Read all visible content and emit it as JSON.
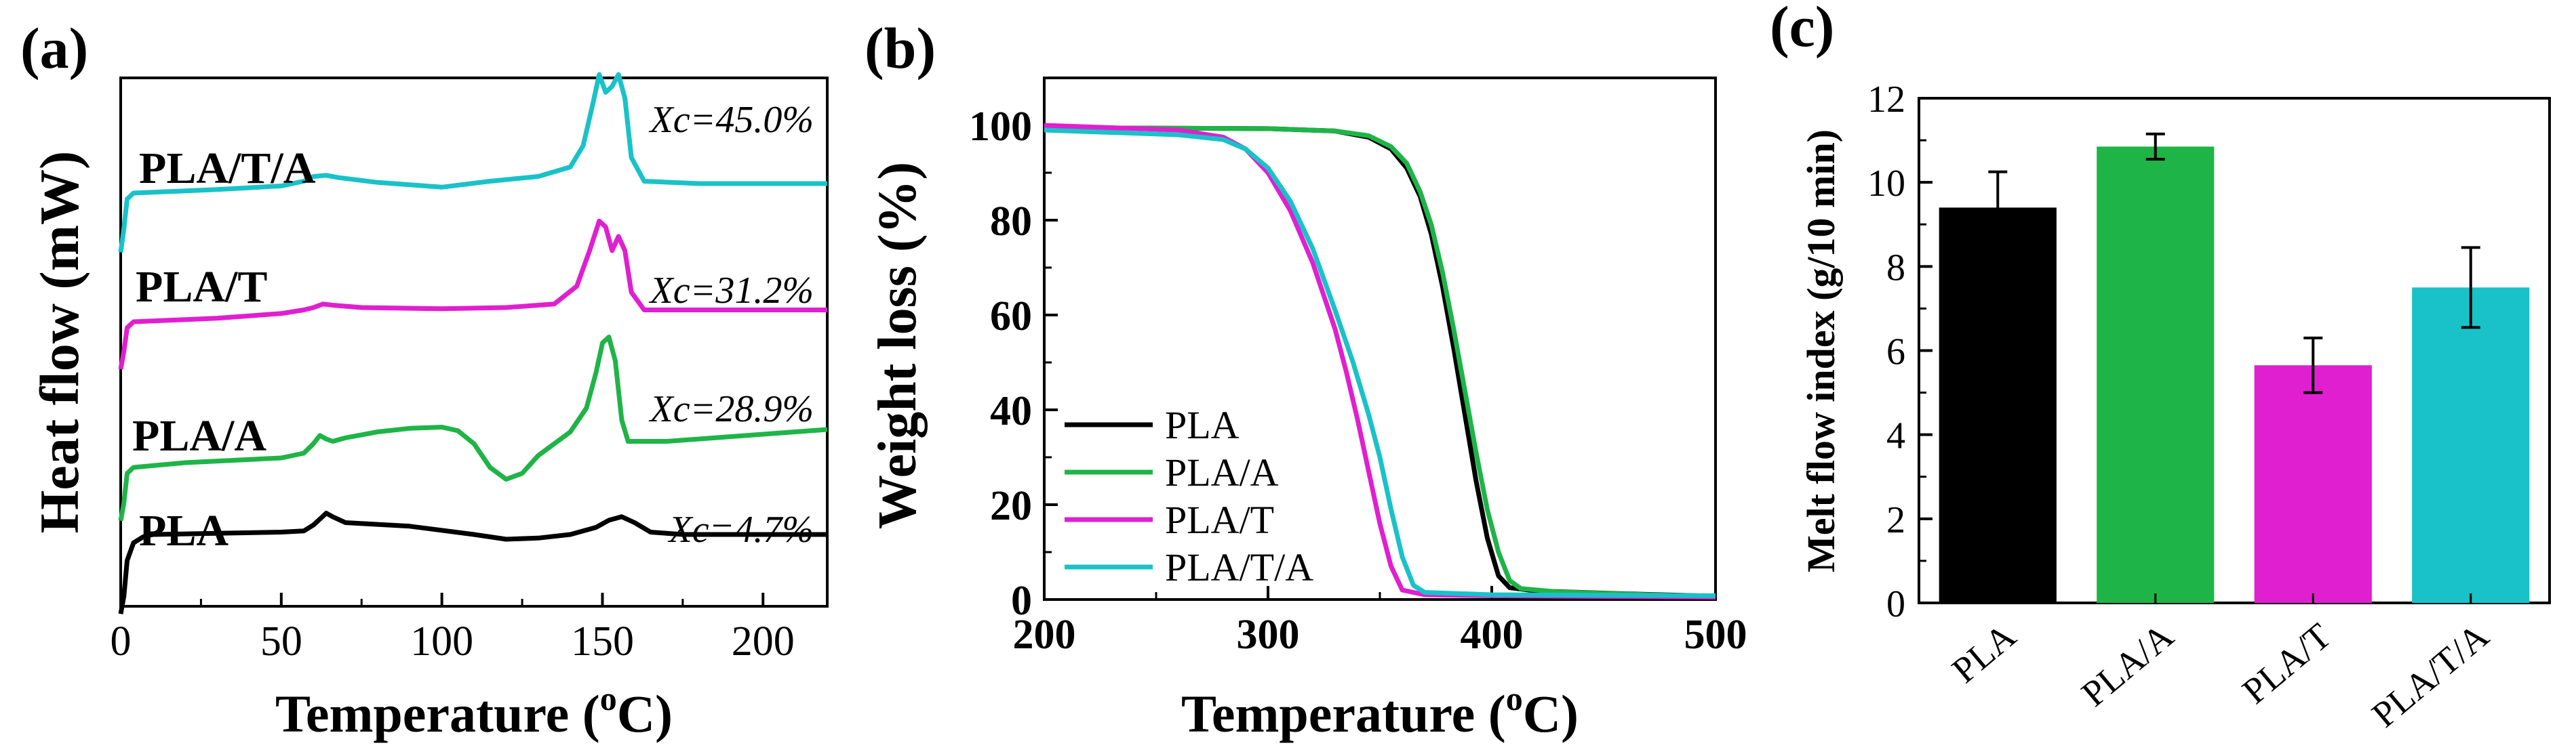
{
  "colors": {
    "black": "#000000",
    "green": "#1fb447",
    "magenta": "#e01fd0",
    "cyan": "#19c2c8"
  },
  "chart_data": [
    {
      "panel": "(a)",
      "type": "line",
      "title": "",
      "xlabel": "Temperature (oC)",
      "xlabel_main": "Temperature (",
      "xlabel_sup": "o",
      "xlabel_end": "C)",
      "ylabel": "Heat flow (mW)",
      "xlim": [
        0,
        220
      ],
      "xticks": [
        "0",
        "50",
        "100",
        "150",
        "200"
      ],
      "y_units": "arbitrary (offset curves, no ticks)",
      "series": [
        {
          "name": "PLA",
          "color": "#000000",
          "annotation": "Xc=4.7%",
          "offset": 0,
          "points": [
            [
              0,
              -55
            ],
            [
              1,
              -40
            ],
            [
              2,
              -10
            ],
            [
              4,
              5
            ],
            [
              7,
              10
            ],
            [
              10,
              12
            ],
            [
              30,
              13
            ],
            [
              50,
              14
            ],
            [
              57,
              15
            ],
            [
              60,
              20
            ],
            [
              62,
              25
            ],
            [
              64,
              30
            ],
            [
              66,
              27
            ],
            [
              70,
              22
            ],
            [
              90,
              19
            ],
            [
              110,
              12
            ],
            [
              120,
              8
            ],
            [
              130,
              9
            ],
            [
              140,
              12
            ],
            [
              148,
              18
            ],
            [
              152,
              24
            ],
            [
              156,
              27
            ],
            [
              160,
              22
            ],
            [
              165,
              14
            ],
            [
              175,
              12
            ],
            [
              200,
              12
            ],
            [
              220,
              12
            ]
          ]
        },
        {
          "name": "PLA/A",
          "color": "#1fb447",
          "annotation": "Xc=28.9%",
          "offset": 100,
          "points": [
            [
              0,
              -45
            ],
            [
              1,
              -30
            ],
            [
              2,
              -5
            ],
            [
              4,
              0
            ],
            [
              20,
              4
            ],
            [
              50,
              8
            ],
            [
              57,
              12
            ],
            [
              60,
              20
            ],
            [
              62,
              27
            ],
            [
              64,
              24
            ],
            [
              66,
              22
            ],
            [
              70,
              25
            ],
            [
              80,
              30
            ],
            [
              90,
              33
            ],
            [
              100,
              34
            ],
            [
              105,
              31
            ],
            [
              110,
              20
            ],
            [
              115,
              0
            ],
            [
              120,
              -10
            ],
            [
              125,
              -5
            ],
            [
              130,
              10
            ],
            [
              140,
              30
            ],
            [
              145,
              50
            ],
            [
              148,
              80
            ],
            [
              150,
              105
            ],
            [
              152,
              110
            ],
            [
              154,
              90
            ],
            [
              156,
              40
            ],
            [
              158,
              22
            ],
            [
              170,
              22
            ],
            [
              200,
              28
            ],
            [
              220,
              32
            ]
          ]
        },
        {
          "name": "PLA/T",
          "color": "#e01fd0",
          "annotation": "Xc=31.2%",
          "offset": 180,
          "points": [
            [
              0,
              -40
            ],
            [
              1,
              -25
            ],
            [
              2,
              -5
            ],
            [
              4,
              0
            ],
            [
              30,
              3
            ],
            [
              50,
              7
            ],
            [
              57,
              10
            ],
            [
              60,
              12
            ],
            [
              63,
              15
            ],
            [
              66,
              14
            ],
            [
              75,
              12
            ],
            [
              100,
              11
            ],
            [
              120,
              12
            ],
            [
              135,
              15
            ],
            [
              142,
              30
            ],
            [
              146,
              60
            ],
            [
              149,
              85
            ],
            [
              151,
              80
            ],
            [
              153,
              60
            ],
            [
              155,
              72
            ],
            [
              157,
              60
            ],
            [
              159,
              25
            ],
            [
              163,
              10
            ],
            [
              180,
              10
            ],
            [
              220,
              10
            ]
          ]
        },
        {
          "name": "PLA/T/A",
          "color": "#19c2c8",
          "annotation": "Xc=45.0%",
          "offset": 275,
          "points": [
            [
              0,
              -50
            ],
            [
              1,
              -30
            ],
            [
              2,
              -5
            ],
            [
              4,
              0
            ],
            [
              30,
              3
            ],
            [
              50,
              6
            ],
            [
              57,
              10
            ],
            [
              60,
              14
            ],
            [
              64,
              15
            ],
            [
              68,
              13
            ],
            [
              80,
              9
            ],
            [
              95,
              6
            ],
            [
              100,
              5
            ],
            [
              115,
              10
            ],
            [
              130,
              14
            ],
            [
              140,
              22
            ],
            [
              144,
              40
            ],
            [
              147,
              75
            ],
            [
              149,
              100
            ],
            [
              151,
              85
            ],
            [
              153,
              90
            ],
            [
              155,
              100
            ],
            [
              157,
              80
            ],
            [
              159,
              30
            ],
            [
              163,
              10
            ],
            [
              180,
              8
            ],
            [
              220,
              8
            ]
          ]
        }
      ]
    },
    {
      "panel": "(b)",
      "type": "line",
      "title": "",
      "xlabel": "Temperature (oC)",
      "xlabel_main": "Temperature (",
      "xlabel_sup": "o",
      "xlabel_end": "C)",
      "ylabel": "Weight loss (%)",
      "xlim": [
        200,
        500
      ],
      "ylim": [
        0,
        110
      ],
      "xticks": [
        "200",
        "300",
        "400",
        "500"
      ],
      "yticks": [
        "0",
        "20",
        "40",
        "60",
        "80",
        "100"
      ],
      "legend": "lower-left",
      "series": [
        {
          "name": "PLA",
          "color": "#000000",
          "points": [
            [
              200,
              99.5
            ],
            [
              300,
              99.3
            ],
            [
              330,
              98.8
            ],
            [
              345,
              97.5
            ],
            [
              355,
              95
            ],
            [
              362,
              91
            ],
            [
              368,
              85
            ],
            [
              373,
              77
            ],
            [
              378,
              66
            ],
            [
              383,
              53
            ],
            [
              388,
              39
            ],
            [
              393,
              25
            ],
            [
              398,
              13
            ],
            [
              403,
              5
            ],
            [
              408,
              2.5
            ],
            [
              420,
              1.8
            ],
            [
              460,
              1.2
            ],
            [
              500,
              0.7
            ]
          ]
        },
        {
          "name": "PLA/A",
          "color": "#1fb447",
          "points": [
            [
              200,
              99.5
            ],
            [
              300,
              99.3
            ],
            [
              330,
              98.8
            ],
            [
              345,
              97.8
            ],
            [
              355,
              95.5
            ],
            [
              362,
              92
            ],
            [
              368,
              86
            ],
            [
              373,
              79
            ],
            [
              378,
              69
            ],
            [
              383,
              57
            ],
            [
              388,
              44
            ],
            [
              393,
              31
            ],
            [
              398,
              19
            ],
            [
              403,
              10
            ],
            [
              408,
              4
            ],
            [
              413,
              2.3
            ],
            [
              430,
              1.6
            ],
            [
              470,
              1
            ],
            [
              500,
              0.6
            ]
          ]
        },
        {
          "name": "PLA/T",
          "color": "#e01fd0",
          "points": [
            [
              200,
              100
            ],
            [
              260,
              99
            ],
            [
              280,
              97.5
            ],
            [
              290,
              95
            ],
            [
              300,
              90
            ],
            [
              310,
              82
            ],
            [
              320,
              71
            ],
            [
              330,
              57
            ],
            [
              335,
              48
            ],
            [
              340,
              38
            ],
            [
              345,
              27
            ],
            [
              350,
              16
            ],
            [
              355,
              7
            ],
            [
              360,
              2
            ],
            [
              370,
              1
            ],
            [
              400,
              0.8
            ],
            [
              500,
              0.5
            ]
          ]
        },
        {
          "name": "PLA/T/A",
          "color": "#19c2c8",
          "points": [
            [
              200,
              99
            ],
            [
              260,
              98
            ],
            [
              280,
              97
            ],
            [
              290,
              95
            ],
            [
              300,
              91
            ],
            [
              310,
              84
            ],
            [
              320,
              74
            ],
            [
              330,
              61
            ],
            [
              338,
              50
            ],
            [
              345,
              39
            ],
            [
              350,
              30
            ],
            [
              355,
              19
            ],
            [
              360,
              9
            ],
            [
              365,
              3
            ],
            [
              370,
              1.5
            ],
            [
              400,
              1
            ],
            [
              500,
              0.8
            ]
          ]
        }
      ]
    },
    {
      "panel": "(c)",
      "type": "bar",
      "title": "",
      "xlabel": "",
      "ylabel": "Melt flow index (g/10 min)",
      "ylim": [
        0,
        12
      ],
      "yticks": [
        "0",
        "2",
        "4",
        "6",
        "8",
        "10",
        "12"
      ],
      "categories": [
        "PLA",
        "PLA/A",
        "PLA/T",
        "PLA/T/A"
      ],
      "values": [
        9.4,
        10.85,
        5.65,
        7.5
      ],
      "errors": [
        0.85,
        0.3,
        0.65,
        0.95
      ],
      "colors": [
        "#000000",
        "#1fb447",
        "#e01fd0",
        "#19c2c8"
      ]
    }
  ]
}
